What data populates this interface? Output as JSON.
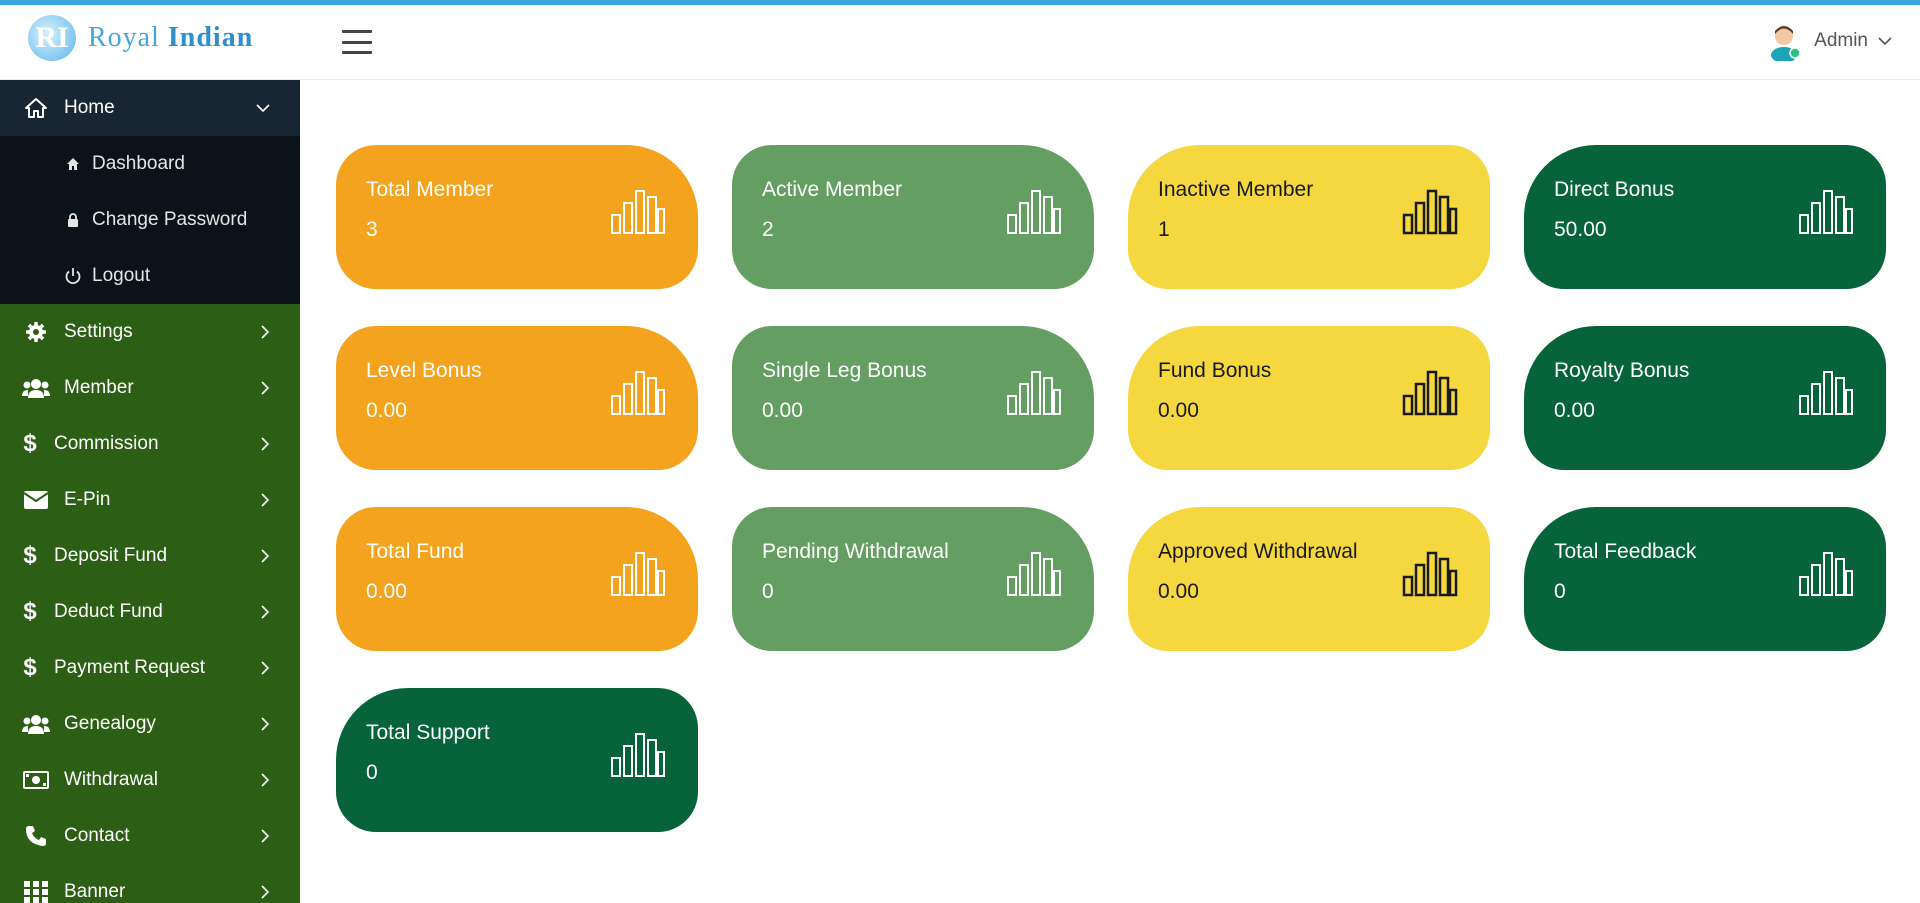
{
  "brand": {
    "mark": "RI",
    "name_part1": "Royal",
    "name_part2": "Indian"
  },
  "header": {
    "user_name": "Admin"
  },
  "sidebar": {
    "home": {
      "label": "Home",
      "icon": "home-icon"
    },
    "submenu": [
      {
        "label": "Dashboard",
        "icon": "home-icon"
      },
      {
        "label": "Change Password",
        "icon": "lock-icon"
      },
      {
        "label": "Logout",
        "icon": "power-icon"
      }
    ],
    "items": [
      {
        "label": "Settings",
        "icon": "gear-icon"
      },
      {
        "label": "Member",
        "icon": "users-icon"
      },
      {
        "label": "Commission",
        "icon": "dollar-icon"
      },
      {
        "label": "E-Pin",
        "icon": "envelope-icon"
      },
      {
        "label": "Deposit Fund",
        "icon": "dollar-icon"
      },
      {
        "label": "Deduct Fund",
        "icon": "dollar-icon"
      },
      {
        "label": "Payment Request",
        "icon": "dollar-icon"
      },
      {
        "label": "Genealogy",
        "icon": "users-icon"
      },
      {
        "label": "Withdrawal",
        "icon": "money-icon"
      },
      {
        "label": "Contact",
        "icon": "phone-icon"
      },
      {
        "label": "Banner",
        "icon": "grid-icon"
      }
    ]
  },
  "cards": [
    {
      "title": "Total Member",
      "value": "3",
      "color": "#f4a31e"
    },
    {
      "title": "Active Member",
      "value": "2",
      "color": "#659e63"
    },
    {
      "title": "Inactive Member",
      "value": "1",
      "color": "#f5d73f"
    },
    {
      "title": "Direct Bonus",
      "value": "50.00",
      "color": "#06633a"
    },
    {
      "title": "Level Bonus",
      "value": "0.00",
      "color": "#f4a31e"
    },
    {
      "title": "Single Leg Bonus",
      "value": "0.00",
      "color": "#659e63"
    },
    {
      "title": "Fund Bonus",
      "value": "0.00",
      "color": "#f5d73f"
    },
    {
      "title": "Royalty Bonus",
      "value": "0.00",
      "color": "#06633a"
    },
    {
      "title": "Total Fund",
      "value": "0.00",
      "color": "#f4a31e"
    },
    {
      "title": "Pending Withdrawal",
      "value": "0",
      "color": "#659e63"
    },
    {
      "title": "Approved Withdrawal",
      "value": "0.00",
      "color": "#f5d73f"
    },
    {
      "title": "Total Feedback",
      "value": "0",
      "color": "#06633a"
    },
    {
      "title": "Total Support",
      "value": "0",
      "color": "#06633a"
    }
  ],
  "colors": {
    "topline": "#3aa8e0",
    "sidebar": "#2d5e16",
    "home_bg": "#182634",
    "submenu_bg": "#0b1219"
  }
}
